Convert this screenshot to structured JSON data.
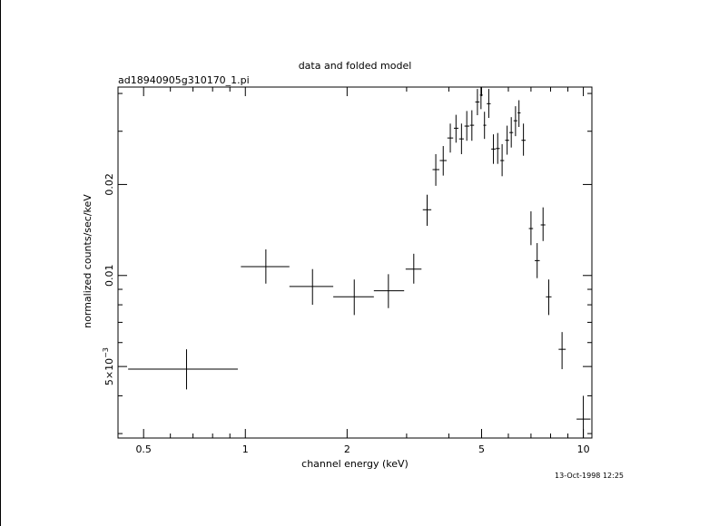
{
  "chart_data": {
    "type": "scatter",
    "title": "data and folded model",
    "subtitle": "ad18940905g310170_1.pi",
    "xlabel": "channel energy (keV)",
    "ylabel": "normalized counts/sec/keV",
    "timestamp": "13-Oct-1998 12:25",
    "x_scale": "log",
    "y_scale": "log",
    "xlim": [
      0.42,
      10.6
    ],
    "ylim": [
      0.0029,
      0.042
    ],
    "x_tick_labels": [
      "0.5",
      "1",
      "2",
      "5",
      "10"
    ],
    "y_tick_labels": [
      {
        "base": "5×10",
        "exp": "−3",
        "value": 0.005
      },
      {
        "base": "0.01",
        "exp": "",
        "value": 0.01
      },
      {
        "base": "0.02",
        "exp": "",
        "value": 0.02
      }
    ],
    "grid": false,
    "legend": "none",
    "series": [
      {
        "points": [
          {
            "x": 0.67,
            "xlo": 0.45,
            "xhi": 0.95,
            "y": 0.0049,
            "ylo": 0.0042,
            "yhi": 0.0057
          },
          {
            "x": 1.15,
            "xlo": 0.97,
            "xhi": 1.35,
            "y": 0.0107,
            "ylo": 0.0094,
            "yhi": 0.0122
          },
          {
            "x": 1.58,
            "xlo": 1.35,
            "xhi": 1.82,
            "y": 0.0092,
            "ylo": 0.008,
            "yhi": 0.0105
          },
          {
            "x": 2.1,
            "xlo": 1.82,
            "xhi": 2.4,
            "y": 0.0085,
            "ylo": 0.0074,
            "yhi": 0.0097
          },
          {
            "x": 2.65,
            "xlo": 2.4,
            "xhi": 2.95,
            "y": 0.0089,
            "ylo": 0.0078,
            "yhi": 0.0101
          },
          {
            "x": 3.15,
            "xlo": 2.98,
            "xhi": 3.32,
            "y": 0.0105,
            "ylo": 0.0094,
            "yhi": 0.0118
          },
          {
            "x": 3.45,
            "xlo": 3.35,
            "xhi": 3.55,
            "y": 0.0165,
            "ylo": 0.0146,
            "yhi": 0.0185
          },
          {
            "x": 3.66,
            "xlo": 3.58,
            "xhi": 3.75,
            "y": 0.0224,
            "ylo": 0.0198,
            "yhi": 0.0252
          },
          {
            "x": 3.85,
            "xlo": 3.76,
            "xhi": 3.94,
            "y": 0.024,
            "ylo": 0.0214,
            "yhi": 0.0268
          },
          {
            "x": 4.04,
            "xlo": 3.96,
            "xhi": 4.12,
            "y": 0.0285,
            "ylo": 0.0255,
            "yhi": 0.0318
          },
          {
            "x": 4.2,
            "xlo": 4.14,
            "xhi": 4.27,
            "y": 0.0307,
            "ylo": 0.0275,
            "yhi": 0.034
          },
          {
            "x": 4.36,
            "xlo": 4.29,
            "xhi": 4.43,
            "y": 0.0283,
            "ylo": 0.0252,
            "yhi": 0.0318
          },
          {
            "x": 4.52,
            "xlo": 4.45,
            "xhi": 4.6,
            "y": 0.0312,
            "ylo": 0.0279,
            "yhi": 0.035
          },
          {
            "x": 4.68,
            "xlo": 4.62,
            "xhi": 4.75,
            "y": 0.0314,
            "ylo": 0.0279,
            "yhi": 0.0352
          },
          {
            "x": 4.86,
            "xlo": 4.79,
            "xhi": 4.93,
            "y": 0.0375,
            "ylo": 0.0339,
            "yhi": 0.0414
          },
          {
            "x": 4.98,
            "xlo": 4.94,
            "xhi": 5.04,
            "y": 0.0395,
            "ylo": 0.0355,
            "yhi": 0.043
          },
          {
            "x": 5.1,
            "xlo": 5.06,
            "xhi": 5.16,
            "y": 0.0314,
            "ylo": 0.0283,
            "yhi": 0.0348
          },
          {
            "x": 5.25,
            "xlo": 5.18,
            "xhi": 5.32,
            "y": 0.037,
            "ylo": 0.0332,
            "yhi": 0.0414
          },
          {
            "x": 5.42,
            "xlo": 5.34,
            "xhi": 5.5,
            "y": 0.0262,
            "ylo": 0.0234,
            "yhi": 0.0293
          },
          {
            "x": 5.58,
            "xlo": 5.51,
            "xhi": 5.66,
            "y": 0.0263,
            "ylo": 0.0234,
            "yhi": 0.0296
          },
          {
            "x": 5.75,
            "xlo": 5.68,
            "xhi": 5.83,
            "y": 0.024,
            "ylo": 0.0213,
            "yhi": 0.0272
          },
          {
            "x": 5.95,
            "xlo": 5.87,
            "xhi": 6.03,
            "y": 0.028,
            "ylo": 0.0251,
            "yhi": 0.0313
          },
          {
            "x": 6.12,
            "xlo": 6.04,
            "xhi": 6.2,
            "y": 0.0297,
            "ylo": 0.0265,
            "yhi": 0.0334
          },
          {
            "x": 6.3,
            "xlo": 6.22,
            "xhi": 6.38,
            "y": 0.0325,
            "ylo": 0.0289,
            "yhi": 0.0363
          },
          {
            "x": 6.45,
            "xlo": 6.39,
            "xhi": 6.52,
            "y": 0.0345,
            "ylo": 0.031,
            "yhi": 0.038
          },
          {
            "x": 6.65,
            "xlo": 6.56,
            "xhi": 6.75,
            "y": 0.028,
            "ylo": 0.0249,
            "yhi": 0.0318
          },
          {
            "x": 7.0,
            "xlo": 6.9,
            "xhi": 7.1,
            "y": 0.0143,
            "ylo": 0.0126,
            "yhi": 0.0163
          },
          {
            "x": 7.3,
            "xlo": 7.18,
            "xhi": 7.43,
            "y": 0.0112,
            "ylo": 0.0098,
            "yhi": 0.0128
          },
          {
            "x": 7.6,
            "xlo": 7.48,
            "xhi": 7.72,
            "y": 0.0147,
            "ylo": 0.013,
            "yhi": 0.0168
          },
          {
            "x": 7.9,
            "xlo": 7.75,
            "xhi": 8.05,
            "y": 0.0085,
            "ylo": 0.0074,
            "yhi": 0.0097
          },
          {
            "x": 8.65,
            "xlo": 8.45,
            "xhi": 8.87,
            "y": 0.0057,
            "ylo": 0.0049,
            "yhi": 0.0065
          },
          {
            "x": 10.0,
            "xlo": 9.55,
            "xhi": 10.5,
            "y": 0.00335,
            "ylo": 0.0029,
            "yhi": 0.004
          }
        ]
      }
    ]
  }
}
